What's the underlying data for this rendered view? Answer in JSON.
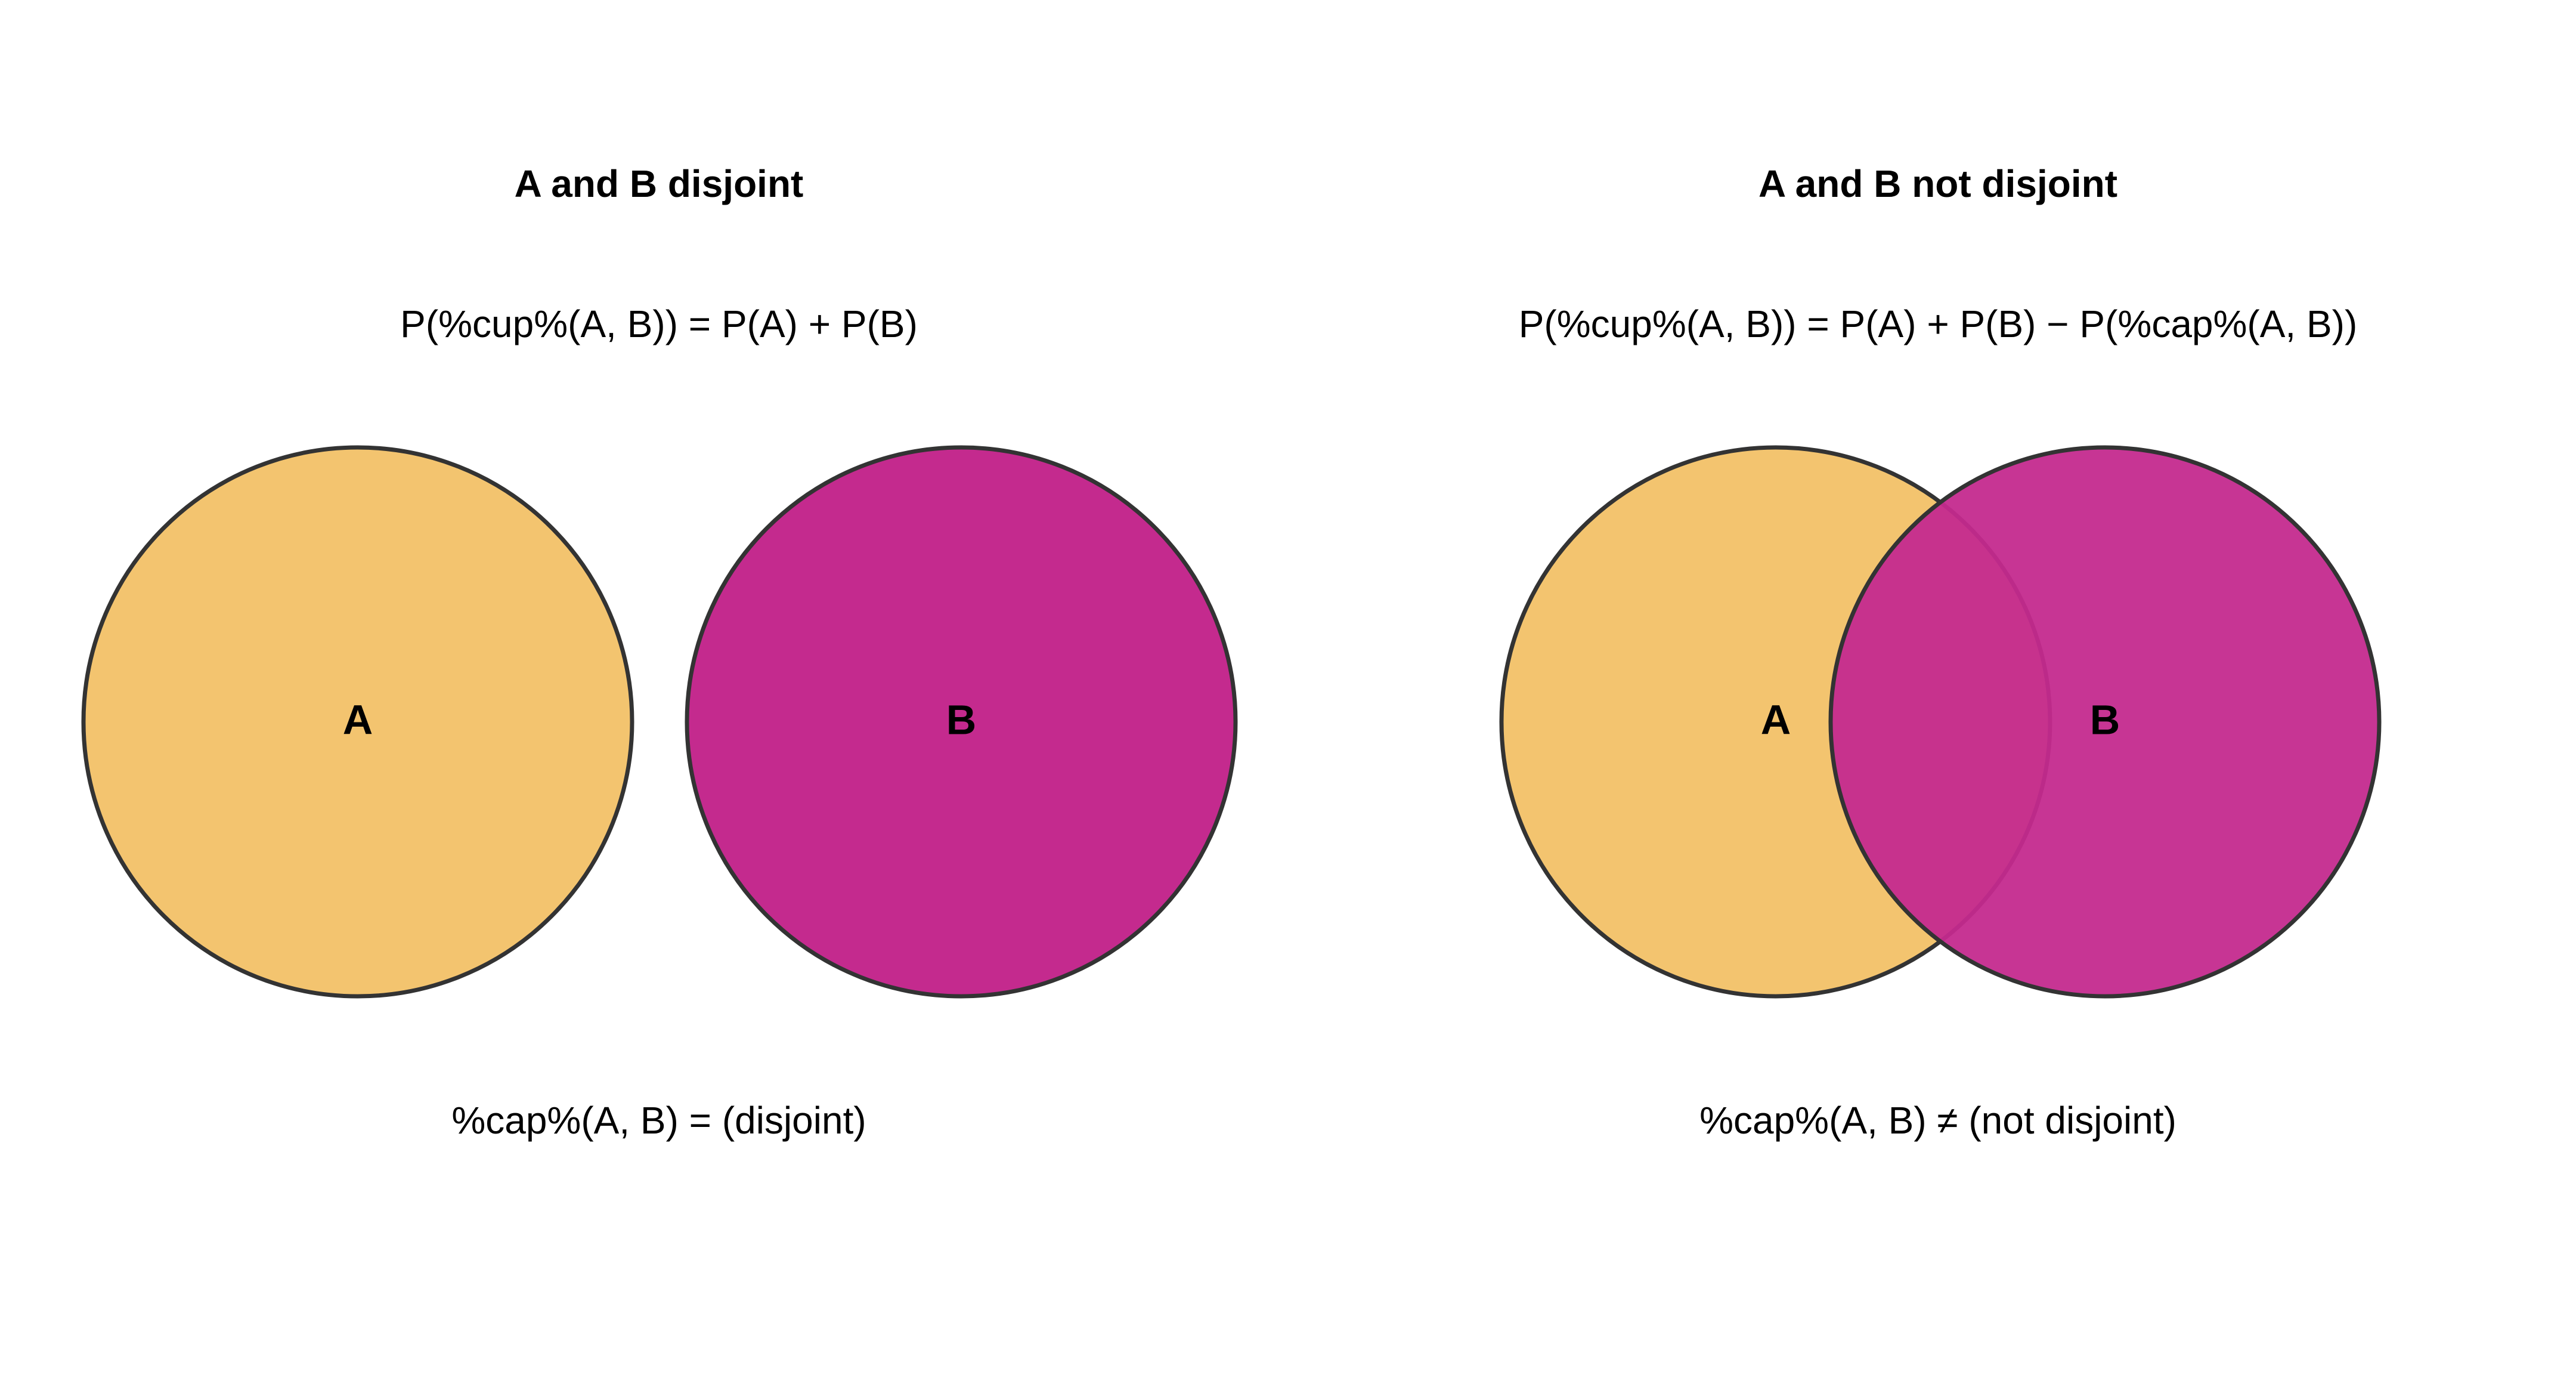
{
  "panels": [
    {
      "title": "A and B disjoint",
      "formula_top": "P(%cup%(A, B)) = P(A) + P(B)",
      "formula_bottom": "%cap%(A, B) = (disjoint)",
      "circle_a_label": "A",
      "circle_b_label": "B"
    },
    {
      "title": "A and B not disjoint",
      "formula_top": "P(%cup%(A, B)) = P(A) + P(B) − P(%cap%(A, B))",
      "formula_bottom": "%cap%(A, B) ≠ (not disjoint)",
      "circle_a_label": "A",
      "circle_b_label": "B"
    }
  ],
  "colors": {
    "circle_a": "#F3C46F",
    "circle_b": "#C42A8E",
    "outline": "#333333",
    "text": "#000000"
  }
}
